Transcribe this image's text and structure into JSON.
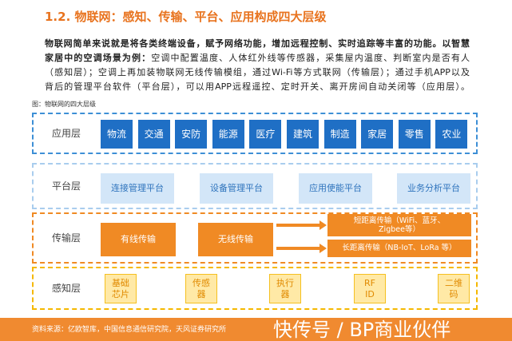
{
  "title": "1.2. 物联网：感知、传输、平台、应用构成四大层级",
  "paragraph": [
    [
      {
        "text": "物联网简单来说就是将各类终端设备，赋予网络功能，增加远程控制、实时追踪等丰富的功能。以智慧",
        "bold": true
      }
    ],
    [
      {
        "text": "家居中的空调场景为例：",
        "bold": true
      },
      {
        "text": "空调中配置温度、人体红外线等传感器，采集屋内温度、判断室内是否有人"
      }
    ],
    [
      {
        "text": "（感知层）；空调上再加装物联网无线传输模组，通过Wi-Fi等方式联网（传输层）；通过手机APP以及"
      }
    ],
    [
      {
        "text": "背后的管理平台软件（平台层），可以用APP远程遥控、定时开关、离开房间自动关闭等（应用层）。"
      }
    ]
  ],
  "figure_caption": "图：物联网的四大层级",
  "layers": [
    {
      "label": "应用层",
      "items": [
        {
          "lines": [
            "物流"
          ]
        },
        {
          "lines": [
            "交通"
          ]
        },
        {
          "lines": [
            "安防"
          ]
        },
        {
          "lines": [
            "能源"
          ]
        },
        {
          "lines": [
            "医疗"
          ]
        },
        {
          "lines": [
            "建筑"
          ]
        },
        {
          "lines": [
            "制造"
          ]
        },
        {
          "lines": [
            "家居"
          ]
        },
        {
          "lines": [
            "零售"
          ]
        },
        {
          "lines": [
            "农业"
          ]
        }
      ]
    },
    {
      "label": "平台层",
      "items": [
        {
          "lines": [
            "连接管理平台"
          ]
        },
        {
          "lines": [
            "设备管理平台"
          ]
        },
        {
          "lines": [
            "应用使能平台"
          ]
        },
        {
          "lines": [
            "业务分析平台"
          ]
        }
      ]
    },
    {
      "label": "传输层",
      "items": [
        {
          "lines": [
            "有线传输"
          ]
        },
        {
          "lines": [
            "无线传输"
          ]
        }
      ],
      "branches": [
        {
          "lines": [
            "短距离传输（WiFi、蓝牙、",
            "Zigbee等）"
          ]
        },
        {
          "lines": [
            "长距离传输（NB-IoT、LoRa 等）"
          ]
        }
      ]
    },
    {
      "label": "感知层",
      "items": [
        {
          "lines": [
            "基础",
            "芯片"
          ]
        },
        {
          "lines": [
            "传感",
            "器"
          ]
        },
        {
          "lines": [
            "执行",
            "器"
          ]
        },
        {
          "lines": [
            "RF",
            "ID"
          ]
        },
        {
          "lines": [
            "二维",
            "码"
          ]
        }
      ]
    }
  ],
  "source": "资料来源：亿欧智库，中国信息通信研究院，天风证券研究所",
  "watermark": "快传号 / BP商业伙伴"
}
